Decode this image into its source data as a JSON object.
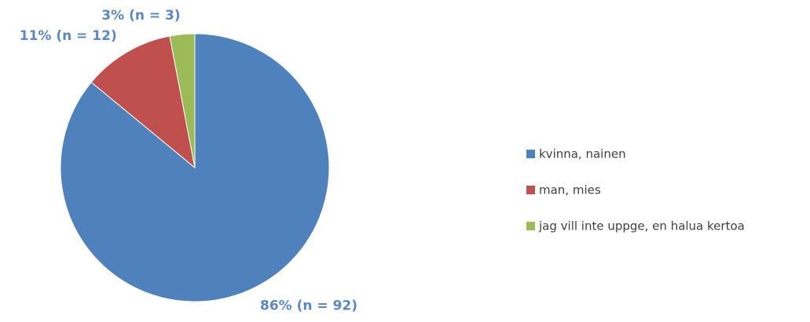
{
  "chart_data": {
    "type": "pie",
    "categories": [
      "kvinna, nainen",
      "man, mies",
      "jag vill inte uppge, en halua kertoa"
    ],
    "values": [
      86,
      11,
      3
    ],
    "value_labels": [
      "86% (n = 92)",
      "11% (n = 12)",
      "3% (n = 3)"
    ],
    "colors": [
      "#4f81bd",
      "#c0504d",
      "#9bbb59"
    ],
    "label_color": "#5b87c5",
    "legend": "right"
  }
}
